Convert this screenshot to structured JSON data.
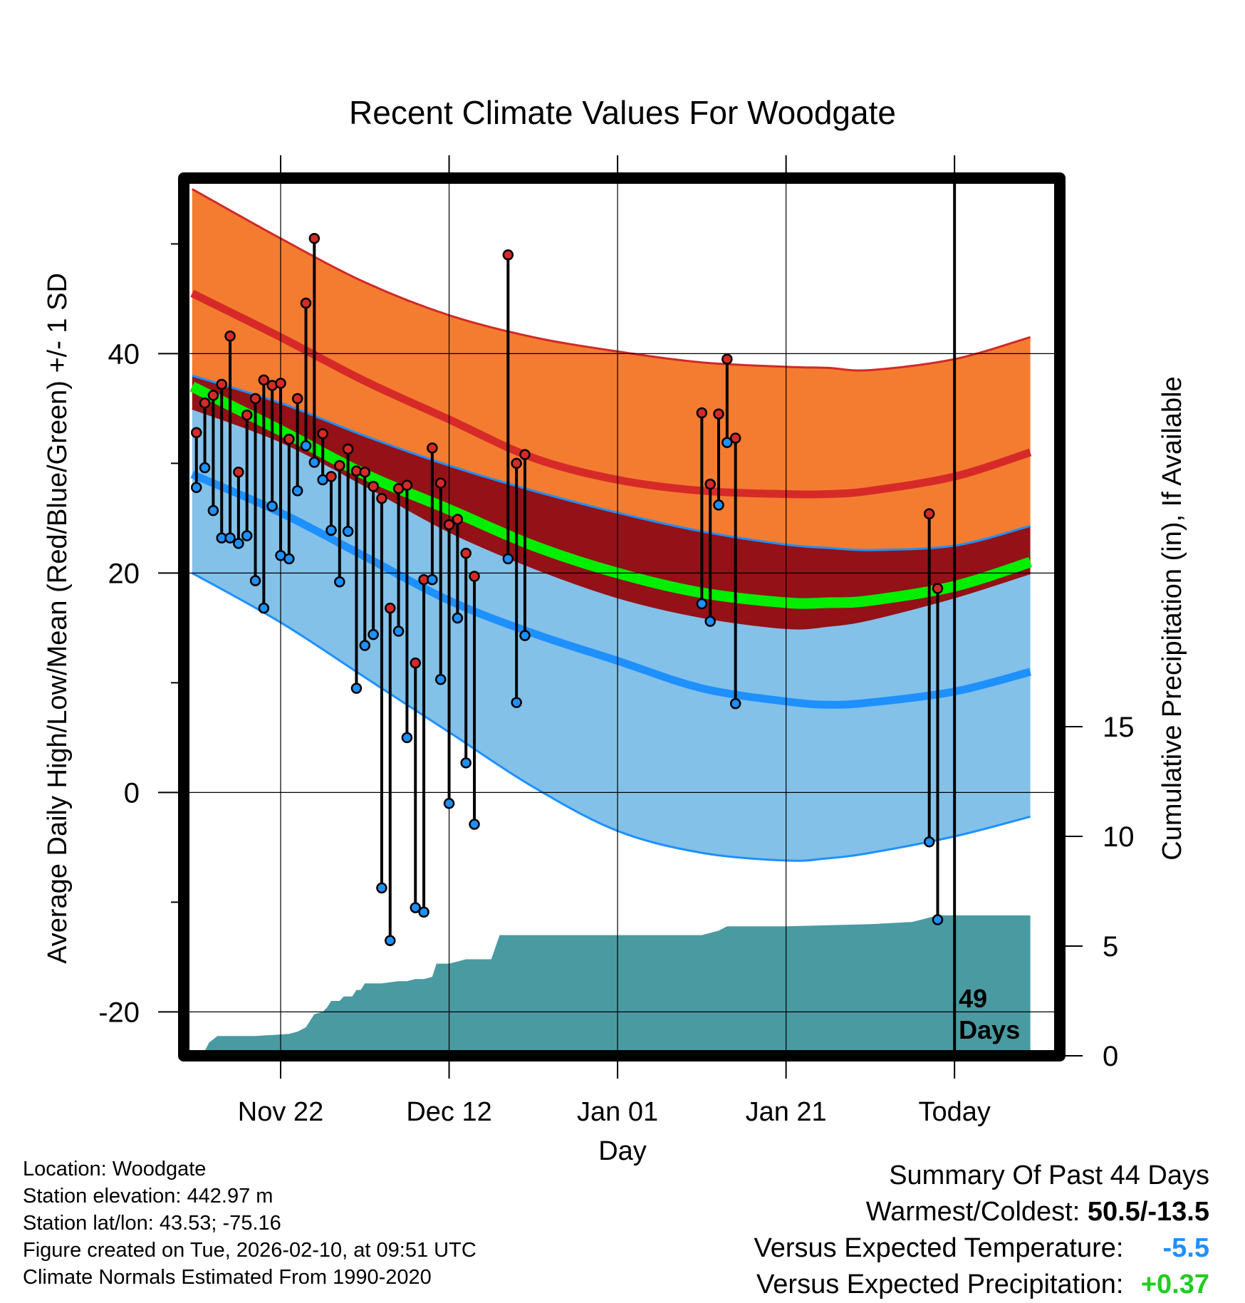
{
  "chart_data": {
    "type": "line",
    "title": "Recent Climate Values For Woodgate",
    "xlabel": "Day",
    "ylabel": "Average Daily High/Low/Mean (Red/Blue/Green) +/- 1 SD",
    "y2label": "Cumulative Precipitation (in), If Available",
    "xlim": [
      -11.5,
      92.5
    ],
    "ylim": [
      -24,
      56
    ],
    "y2lim": [
      0,
      40
    ],
    "x_ticks": [
      {
        "day": 0,
        "label": "Nov 22"
      },
      {
        "day": 20,
        "label": "Dec 12"
      },
      {
        "day": 40,
        "label": "Jan 01"
      },
      {
        "day": 60,
        "label": "Jan 21"
      },
      {
        "day": 80,
        "label": "Today"
      }
    ],
    "y_ticks": [
      {
        "value": -20,
        "label": "-20"
      },
      {
        "value": 0,
        "label": "0"
      },
      {
        "value": 20,
        "label": "20"
      },
      {
        "value": 40,
        "label": "40"
      }
    ],
    "y_minor_ticks": [
      -10,
      10,
      30,
      50
    ],
    "y2_ticks": [
      {
        "value": 0,
        "label": "0"
      },
      {
        "value": 5,
        "label": "5"
      },
      {
        "value": 10,
        "label": "10"
      },
      {
        "value": 15,
        "label": "15"
      }
    ],
    "today_day": 80,
    "days_label_number": "49",
    "days_label_word": "Days",
    "normals": {
      "x": [
        -10.5,
        0,
        10,
        20,
        30,
        40,
        50,
        60,
        65,
        70,
        80,
        89
      ],
      "high_mean": [
        45.5,
        41.5,
        37.5,
        34,
        30.5,
        28.5,
        27.5,
        27.2,
        27.2,
        27.5,
        28.8,
        31
      ],
      "high_upper": [
        55,
        50.5,
        46.5,
        43.5,
        41.5,
        40.2,
        39.2,
        38.8,
        38.7,
        38.5,
        39.5,
        41.5
      ],
      "high_lower": [
        38,
        35.5,
        32.5,
        29.8,
        27.5,
        25.5,
        23.8,
        22.6,
        22.3,
        22.1,
        22.5,
        24.3
      ],
      "mean": [
        37,
        33,
        29,
        25.8,
        22.5,
        20,
        18.2,
        17.3,
        17.3,
        17.5,
        18.8,
        21
      ],
      "low_mean": [
        29,
        25.5,
        21.5,
        17.5,
        14.5,
        12,
        9.5,
        8.3,
        8,
        8.2,
        9.2,
        11
      ],
      "low_upper": [
        35,
        32,
        28,
        23.8,
        20.5,
        17.8,
        16,
        15,
        15.2,
        15.8,
        17.8,
        20
      ],
      "low_lower": [
        20,
        15.5,
        10.5,
        5.5,
        0.5,
        -3.5,
        -5.5,
        -6.2,
        -6,
        -5.5,
        -4,
        -2.2
      ]
    },
    "colors": {
      "high_band": "#f47c30",
      "high_edge": "#d02a28",
      "high_line": "#d62a28",
      "overlap_band": "#941117",
      "mean_line": "#00ee00",
      "low_band": "#83c1e8",
      "low_edge": "#1e90ff",
      "low_line": "#1e90ff",
      "precip_area": "#4a9aa2",
      "high_marker": "#d62a28",
      "low_marker": "#1e90ff"
    },
    "observations": [
      {
        "day": -10,
        "high": 32.8,
        "low": 27.8
      },
      {
        "day": -9,
        "high": 35.5,
        "low": 29.6
      },
      {
        "day": -8,
        "high": 36.2,
        "low": 25.7
      },
      {
        "day": -7,
        "high": 37.2,
        "low": 23.2
      },
      {
        "day": -6,
        "high": 41.6,
        "low": 23.2
      },
      {
        "day": -5,
        "high": 29.2,
        "low": 22.7
      },
      {
        "day": -4,
        "high": 34.4,
        "low": 23.4
      },
      {
        "day": -3,
        "high": 35.9,
        "low": 19.3
      },
      {
        "day": -2,
        "high": 37.6,
        "low": 16.8
      },
      {
        "day": -1,
        "high": 37.1,
        "low": 26.1
      },
      {
        "day": 0,
        "high": 37.3,
        "low": 21.6
      },
      {
        "day": 1,
        "high": 32.2,
        "low": 21.3
      },
      {
        "day": 2,
        "high": 35.9,
        "low": 27.5
      },
      {
        "day": 3,
        "high": 44.6,
        "low": 31.6
      },
      {
        "day": 4,
        "high": 50.5,
        "low": 30.1
      },
      {
        "day": 5,
        "high": 32.7,
        "low": 28.5
      },
      {
        "day": 6,
        "high": 28.8,
        "low": 23.9
      },
      {
        "day": 7,
        "high": 29.8,
        "low": 19.2
      },
      {
        "day": 8,
        "high": 31.3,
        "low": 23.8
      },
      {
        "day": 9,
        "high": 29.3,
        "low": 9.5
      },
      {
        "day": 10,
        "high": 29.2,
        "low": 13.4
      },
      {
        "day": 11,
        "high": 27.9,
        "low": 14.4
      },
      {
        "day": 12,
        "high": 26.8,
        "low": -8.7
      },
      {
        "day": 13,
        "high": 16.8,
        "low": -13.5
      },
      {
        "day": 14,
        "high": 27.7,
        "low": 14.7
      },
      {
        "day": 15,
        "high": 28.0,
        "low": 5.0
      },
      {
        "day": 16,
        "high": 11.8,
        "low": -10.5
      },
      {
        "day": 17,
        "high": 19.4,
        "low": -10.9
      },
      {
        "day": 18,
        "high": 31.4,
        "low": 19.4
      },
      {
        "day": 19,
        "high": 28.2,
        "low": 10.3
      },
      {
        "day": 20,
        "high": 24.4,
        "low": -1.0
      },
      {
        "day": 21,
        "high": 24.9,
        "low": 15.9
      },
      {
        "day": 22,
        "high": 21.8,
        "low": 2.7
      },
      {
        "day": 23,
        "high": 19.7,
        "low": -2.9
      },
      {
        "day": 27,
        "high": 49.0,
        "low": 21.3
      },
      {
        "day": 28,
        "high": 30.0,
        "low": 8.2
      },
      {
        "day": 29,
        "high": 30.8,
        "low": 14.3
      },
      {
        "day": 50,
        "high": 34.6,
        "low": 17.2
      },
      {
        "day": 51,
        "high": 28.1,
        "low": 15.6
      },
      {
        "day": 52,
        "high": 34.5,
        "low": 26.2
      },
      {
        "day": 53,
        "high": 39.5,
        "low": 31.9
      },
      {
        "day": 54,
        "high": 32.3,
        "low": 8.1
      },
      {
        "day": 77,
        "high": 25.4,
        "low": -4.5
      },
      {
        "day": 78,
        "high": 18.6,
        "low": -11.6
      }
    ],
    "precipitation": {
      "x": [
        -9.3,
        -8.5,
        -7.5,
        -3,
        1,
        2,
        3,
        3.5,
        4,
        5,
        5.5,
        6,
        7,
        7.5,
        8.5,
        9,
        9.5,
        10,
        12,
        14,
        15,
        16,
        17,
        18,
        18.5,
        20,
        21,
        22,
        25,
        26,
        27,
        30,
        40,
        50,
        52,
        53,
        54,
        58,
        60,
        70,
        75,
        77,
        78,
        80,
        89
      ],
      "y": [
        0,
        0.6,
        0.9,
        0.9,
        1.0,
        1.1,
        1.3,
        1.6,
        1.9,
        2.0,
        2.2,
        2.5,
        2.5,
        2.7,
        2.7,
        3.0,
        3.0,
        3.3,
        3.3,
        3.4,
        3.4,
        3.5,
        3.5,
        3.6,
        4.2,
        4.2,
        4.3,
        4.4,
        4.4,
        5.5,
        5.5,
        5.5,
        5.5,
        5.5,
        5.7,
        5.9,
        5.9,
        5.9,
        5.9,
        6.0,
        6.1,
        6.3,
        6.4,
        6.4,
        6.4
      ]
    }
  },
  "info": {
    "location": "Location: Woodgate",
    "elevation": "Station elevation: 442.97 m",
    "latlon": "Station lat/lon: 43.53; -75.16",
    "created": "Figure created on Tue, 2026-02-10, at 09:51 UTC",
    "normals": "Climate Normals Estimated From 1990-2020"
  },
  "summary": {
    "title": "Summary Of Past 44 Days",
    "warmest_coldest_label": "Warmest/Coldest:",
    "warmest_coldest_value": "50.5/-13.5",
    "temp_label": "Versus Expected Temperature:",
    "temp_value": "-5.5",
    "temp_color": "#1e90ff",
    "precip_label": "Versus Expected Precipitation:",
    "precip_value": "+0.37",
    "precip_color": "#22cc22"
  }
}
